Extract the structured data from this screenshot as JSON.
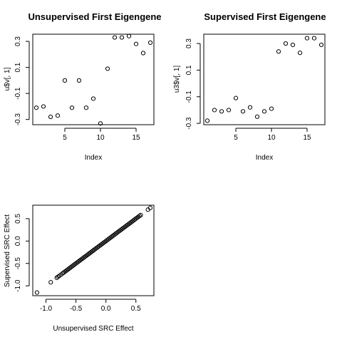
{
  "chart_data": [
    {
      "type": "scatter",
      "title": "Unsupervised First Eigengene",
      "xlabel": "Index",
      "ylabel": "u$v[, 1]",
      "x": [
        1,
        2,
        3,
        4,
        5,
        6,
        7,
        8,
        9,
        10,
        11,
        12,
        13,
        14,
        15,
        16,
        17
      ],
      "y": [
        -0.21,
        -0.2,
        -0.28,
        -0.27,
        0.0,
        -0.21,
        0.0,
        -0.21,
        -0.14,
        -0.33,
        0.09,
        0.33,
        0.33,
        0.34,
        0.28,
        0.21,
        0.29
      ],
      "xlim": [
        0.5,
        17.5
      ],
      "ylim": [
        -0.34,
        0.355
      ],
      "xticks": [
        5,
        10,
        15
      ],
      "yticks": [
        -0.3,
        -0.1,
        0.1,
        0.3
      ],
      "xtick_labels": [
        "5",
        "10",
        "15"
      ],
      "ytick_labels": [
        "-0.3",
        "-0.1",
        "0.1",
        "0.3"
      ]
    },
    {
      "type": "scatter",
      "title": "Supervised First Eigengene",
      "xlabel": "Index",
      "ylabel": "u3$v[, 1]",
      "x": [
        1,
        2,
        3,
        4,
        5,
        6,
        7,
        8,
        9,
        10,
        11,
        12,
        13,
        14,
        15,
        16,
        17
      ],
      "y": [
        -0.28,
        -0.2,
        -0.21,
        -0.2,
        -0.11,
        -0.21,
        -0.18,
        -0.25,
        -0.21,
        -0.19,
        0.24,
        0.3,
        0.29,
        0.23,
        0.34,
        0.34,
        0.29
      ],
      "xlim": [
        0.5,
        17.5
      ],
      "ylim": [
        -0.31,
        0.37
      ],
      "xticks": [
        5,
        10,
        15
      ],
      "yticks": [
        -0.3,
        -0.1,
        0.1,
        0.3
      ],
      "xtick_labels": [
        "5",
        "10",
        "15"
      ],
      "ytick_labels": [
        "-0.3",
        "-0.1",
        "0.1",
        "0.3"
      ]
    },
    {
      "type": "scatter",
      "title": "",
      "xlabel": "Unsupervised SRC Effect",
      "ylabel": "Supervised SRC Effect",
      "x": [
        -1.15,
        -0.92,
        -0.82,
        -0.8,
        -0.78,
        -0.75,
        -0.72,
        -0.7,
        -0.68,
        -0.66,
        -0.64,
        -0.62,
        -0.6,
        -0.58,
        -0.56,
        -0.54,
        -0.52,
        -0.5,
        -0.48,
        -0.46,
        -0.44,
        -0.42,
        -0.4,
        -0.38,
        -0.36,
        -0.34,
        -0.32,
        -0.3,
        -0.28,
        -0.26,
        -0.24,
        -0.22,
        -0.2,
        -0.18,
        -0.16,
        -0.14,
        -0.12,
        -0.1,
        -0.08,
        -0.06,
        -0.04,
        -0.02,
        0.0,
        0.02,
        0.04,
        0.06,
        0.08,
        0.1,
        0.12,
        0.14,
        0.16,
        0.18,
        0.2,
        0.22,
        0.24,
        0.26,
        0.28,
        0.3,
        0.32,
        0.34,
        0.36,
        0.38,
        0.4,
        0.42,
        0.44,
        0.46,
        0.48,
        0.5,
        0.52,
        0.54,
        0.56,
        0.58,
        0.7,
        0.74
      ],
      "y": [
        -1.15,
        -0.92,
        -0.82,
        -0.8,
        -0.78,
        -0.75,
        -0.72,
        -0.7,
        -0.68,
        -0.66,
        -0.64,
        -0.62,
        -0.6,
        -0.58,
        -0.56,
        -0.54,
        -0.52,
        -0.5,
        -0.48,
        -0.46,
        -0.44,
        -0.42,
        -0.4,
        -0.38,
        -0.36,
        -0.34,
        -0.32,
        -0.3,
        -0.28,
        -0.26,
        -0.24,
        -0.22,
        -0.2,
        -0.18,
        -0.16,
        -0.14,
        -0.12,
        -0.1,
        -0.08,
        -0.06,
        -0.04,
        -0.02,
        0.0,
        0.02,
        0.04,
        0.06,
        0.08,
        0.1,
        0.12,
        0.14,
        0.16,
        0.18,
        0.2,
        0.22,
        0.24,
        0.26,
        0.28,
        0.3,
        0.32,
        0.34,
        0.36,
        0.38,
        0.4,
        0.42,
        0.44,
        0.46,
        0.48,
        0.5,
        0.52,
        0.54,
        0.56,
        0.58,
        0.7,
        0.74
      ],
      "xlim": [
        -1.22,
        0.8
      ],
      "ylim": [
        -1.22,
        0.8
      ],
      "xticks": [
        -1.0,
        -0.5,
        0.0,
        0.5
      ],
      "yticks": [
        -1.0,
        -0.5,
        0.0,
        0.5
      ],
      "xtick_labels": [
        "-1.0",
        "-0.5",
        "0.0",
        "0.5"
      ],
      "ytick_labels": [
        "-1.0",
        "-0.5",
        "0.0",
        "0.5"
      ]
    }
  ]
}
